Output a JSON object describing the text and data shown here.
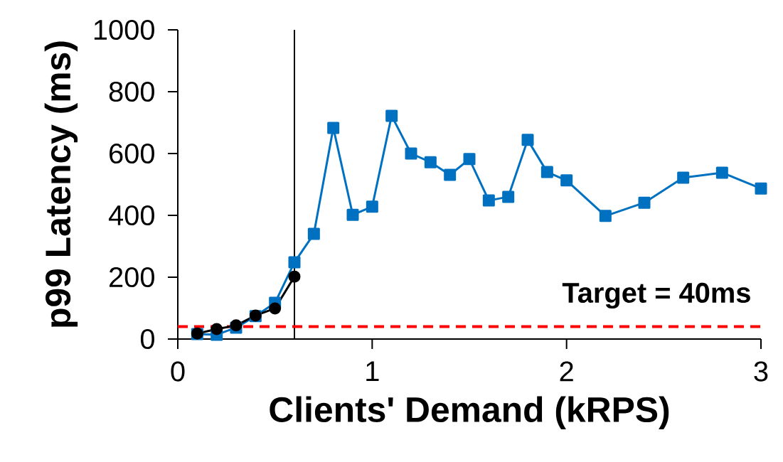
{
  "chart_data": {
    "type": "line",
    "xlabel": "Clients' Demand (kRPS)",
    "ylabel": "p99 Latency (ms)",
    "xlim": [
      0,
      3
    ],
    "xticks": [
      0,
      1,
      2,
      3
    ],
    "ylim": [
      0,
      1000
    ],
    "yticks": [
      0,
      200,
      400,
      600,
      800,
      1000
    ],
    "grid": false,
    "line_style": "solid",
    "series": [
      {
        "color": "#0070c0",
        "marker": "square",
        "x": [
          0.1,
          0.2,
          0.3,
          0.4,
          0.5,
          0.6,
          0.7,
          0.8,
          0.9,
          1.0,
          1.1,
          1.2,
          1.3,
          1.4,
          1.5,
          1.6,
          1.7,
          1.8,
          1.9,
          2.0,
          2.2,
          2.4,
          2.6,
          2.8,
          3.0
        ],
        "values": [
          16,
          14,
          37,
          74,
          117,
          248,
          340,
          683,
          402,
          428,
          722,
          600,
          572,
          531,
          582,
          448,
          460,
          644,
          540,
          513,
          398,
          441,
          522,
          538,
          487
        ]
      },
      {
        "color": "#000000",
        "marker": "circle",
        "x": [
          0.1,
          0.2,
          0.3,
          0.4,
          0.5,
          0.6
        ],
        "values": [
          18,
          32,
          44,
          76,
          99,
          202
        ]
      }
    ],
    "ref_lines": [
      {
        "axis": "x",
        "value": 0.6,
        "color": "#000000",
        "line_style": "solid"
      },
      {
        "axis": "y",
        "value": 40,
        "color": "#ff0000",
        "line_style": "dashed",
        "label": "Target = 40ms"
      }
    ]
  }
}
